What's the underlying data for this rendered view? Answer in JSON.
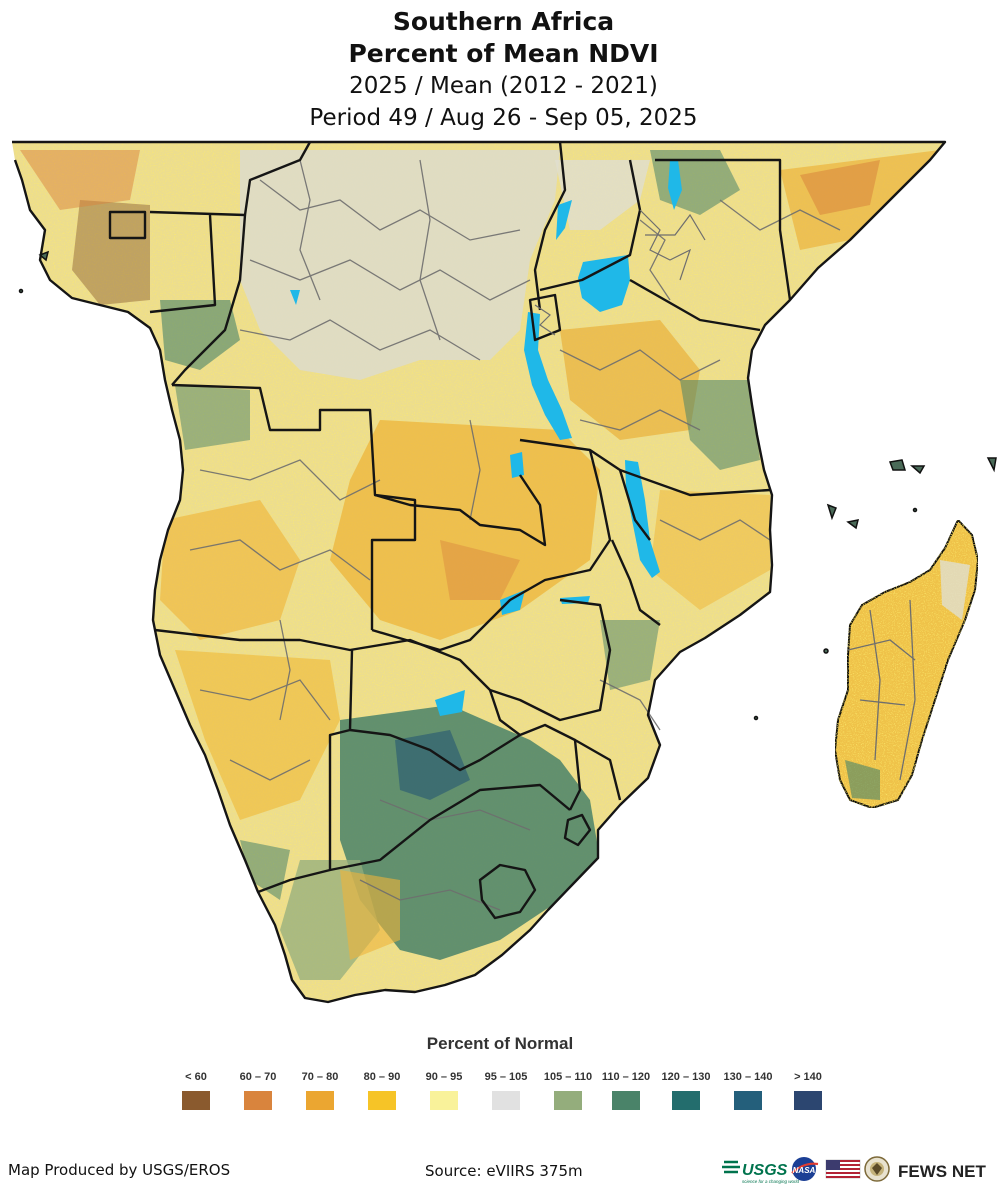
{
  "title": {
    "line1": "Southern Africa",
    "line2": "Percent of Mean NDVI",
    "line3": "2025 / Mean (2012 - 2021)",
    "line4": "Period 49 / Aug 26 - Sep 05, 2025"
  },
  "legend": {
    "title": "Percent of Normal",
    "items": [
      {
        "label": "< 60",
        "color": "#8a5a2e"
      },
      {
        "label": "60 – 70",
        "color": "#d9843d"
      },
      {
        "label": "70 – 80",
        "color": "#eba631"
      },
      {
        "label": "80 – 90",
        "color": "#f6c427"
      },
      {
        "label": "90 – 95",
        "color": "#f9f29a"
      },
      {
        "label": "95 – 105",
        "color": "#e1e1e1"
      },
      {
        "label": "105 – 110",
        "color": "#94ad7c"
      },
      {
        "label": "110 – 120",
        "color": "#4a8369"
      },
      {
        "label": "120 – 130",
        "color": "#236d6d"
      },
      {
        "label": "130 – 140",
        "color": "#245f7b"
      },
      {
        "label": "> 140",
        "color": "#2c4670"
      }
    ]
  },
  "footer": {
    "produced_by": "Map Produced by USGS/EROS",
    "source": "Source: eVIIRS 375m",
    "logo_usgs": "USGS",
    "logo_usgs_tagline": "science for a changing world",
    "logo_nasa": "NASA",
    "logo_fewsnet": "FEWS NET"
  },
  "colors": {
    "water": "#1fb8e8",
    "border": "#1a1a1a",
    "admin": "#6e6e6e"
  }
}
